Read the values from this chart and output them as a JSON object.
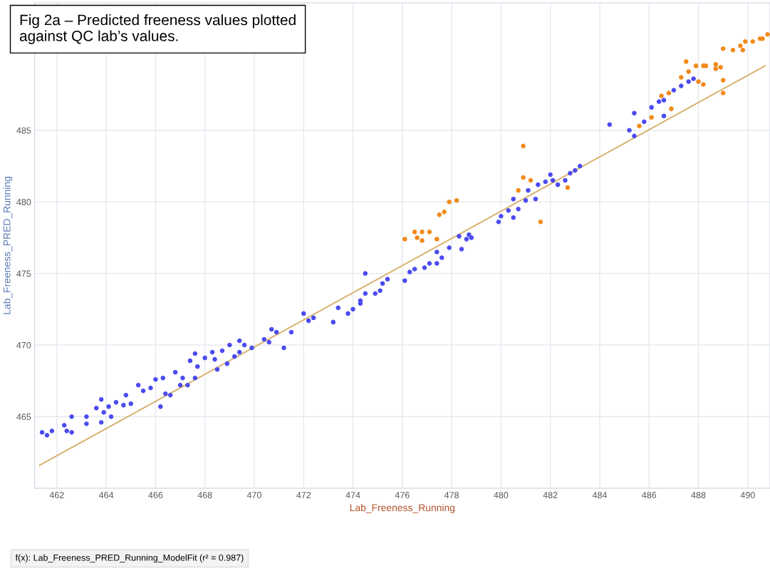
{
  "chart_data": {
    "type": "scatter",
    "xlabel": "Lab_Freeness_Running",
    "ylabel": "Lab_Freeness_PRED_Running",
    "annotations": [
      "Fig 2a – Predicted freeness values plotted against QC lab’s values.",
      "f(x): Lab_Freeness_PRED_Running_ModelFit (r² = 0.987)"
    ],
    "xlim": [
      461.1,
      490.9
    ],
    "ylim": [
      460.0,
      493.9
    ],
    "xticks": [
      462,
      464,
      466,
      468,
      470,
      472,
      474,
      476,
      478,
      480,
      482,
      484,
      486,
      488,
      490
    ],
    "yticks": [
      465,
      470,
      475,
      480,
      485
    ],
    "grid": true,
    "legend": false,
    "marker": "circle",
    "series": [
      {
        "color": "#4b4bf0",
        "x": [
          461.4,
          461.6,
          461.8,
          462.3,
          462.4,
          462.6,
          462.6,
          463.2,
          463.2,
          463.6,
          463.8,
          463.9,
          463.8,
          464.1,
          464.2,
          464.4,
          464.7,
          464.8,
          465.0,
          465.3,
          465.5,
          465.8,
          466.0,
          466.3,
          466.2,
          466.4,
          466.6,
          466.8,
          467.0,
          467.1,
          467.3,
          467.4,
          467.6,
          467.6,
          467.7,
          468.0,
          468.3,
          468.4,
          468.5,
          468.7,
          468.9,
          469.0,
          469.2,
          469.4,
          469.4,
          469.6,
          469.9,
          470.4,
          470.6,
          470.7,
          470.9,
          471.2,
          471.5,
          472.0,
          472.2,
          472.4,
          473.2,
          473.4,
          473.8,
          474.0,
          474.3,
          474.5,
          474.9,
          475.2,
          475.4,
          474.5,
          474.3,
          475.1,
          476.1,
          476.3,
          476.5,
          476.9,
          477.1,
          477.4,
          477.4,
          477.6,
          477.9,
          478.3,
          478.4,
          478.6,
          478.7,
          478.8,
          479.9,
          480.0,
          480.3,
          480.5,
          480.7,
          480.5,
          481.0,
          481.1,
          481.4,
          481.5,
          481.8,
          482.0,
          482.1,
          482.3,
          482.6,
          482.8,
          483.0,
          483.2,
          484.4,
          485.2,
          485.4,
          485.4,
          485.8,
          486.1,
          486.4,
          486.6,
          486.6,
          487.0,
          487.3,
          487.6,
          487.8
        ],
        "values": [
          463.9,
          463.7,
          464.0,
          464.4,
          464.0,
          463.9,
          465.0,
          465.0,
          464.5,
          465.6,
          466.2,
          465.3,
          464.6,
          465.7,
          465.0,
          466.0,
          465.8,
          466.5,
          465.9,
          467.2,
          466.8,
          467.0,
          467.6,
          467.7,
          465.7,
          466.6,
          466.5,
          468.1,
          467.2,
          467.7,
          467.2,
          468.9,
          467.7,
          469.4,
          468.5,
          469.1,
          469.5,
          469.0,
          468.3,
          469.6,
          468.7,
          470.0,
          469.2,
          470.3,
          469.5,
          470.0,
          469.8,
          470.4,
          470.2,
          471.1,
          470.9,
          469.8,
          470.9,
          472.2,
          471.7,
          471.9,
          471.6,
          472.6,
          472.2,
          472.5,
          473.1,
          473.6,
          473.6,
          474.3,
          474.6,
          475.0,
          472.9,
          473.8,
          474.5,
          475.1,
          475.3,
          475.4,
          475.7,
          475.7,
          476.5,
          476.1,
          476.8,
          477.6,
          476.7,
          477.4,
          477.7,
          477.5,
          478.6,
          479.0,
          479.4,
          478.9,
          479.5,
          480.2,
          480.1,
          480.8,
          480.2,
          481.2,
          481.4,
          481.9,
          481.5,
          481.2,
          481.5,
          482.0,
          482.2,
          482.5,
          485.4,
          485.0,
          484.6,
          486.2,
          485.6,
          486.6,
          487.0,
          487.1,
          486.0,
          487.8,
          488.1,
          488.4,
          488.6
        ]
      },
      {
        "color": "#f08a1a",
        "x": [
          476.1,
          476.5,
          476.6,
          476.8,
          476.8,
          477.1,
          477.4,
          477.5,
          477.7,
          477.9,
          478.2,
          480.7,
          480.9,
          481.2,
          481.6,
          482.7,
          480.9,
          485.6,
          486.1,
          486.5,
          486.8,
          486.9,
          487.3,
          487.5,
          487.6,
          487.9,
          488.2,
          488.0,
          488.3,
          488.2,
          488.7,
          488.7,
          488.9,
          489.0,
          489.0,
          489.0,
          489.4,
          489.7,
          489.8,
          489.9,
          490.2,
          490.5,
          490.6,
          490.8
        ],
        "values": [
          477.4,
          477.9,
          477.5,
          477.9,
          477.3,
          477.9,
          477.4,
          479.1,
          479.3,
          480.0,
          480.1,
          480.8,
          481.7,
          481.5,
          478.6,
          481.0,
          483.9,
          485.3,
          485.9,
          487.4,
          487.6,
          486.5,
          488.7,
          489.8,
          489.1,
          489.5,
          489.5,
          488.4,
          489.5,
          488.2,
          489.6,
          489.3,
          489.4,
          488.5,
          487.6,
          490.7,
          490.6,
          490.9,
          490.6,
          491.2,
          491.2,
          491.4,
          491.4,
          491.7
        ]
      },
      {
        "type": "line",
        "color": "#d9b170",
        "marker": "none",
        "line_style": "solid",
        "x": [
          461.3,
          490.7
        ],
        "values": [
          461.6,
          489.5
        ]
      }
    ]
  }
}
